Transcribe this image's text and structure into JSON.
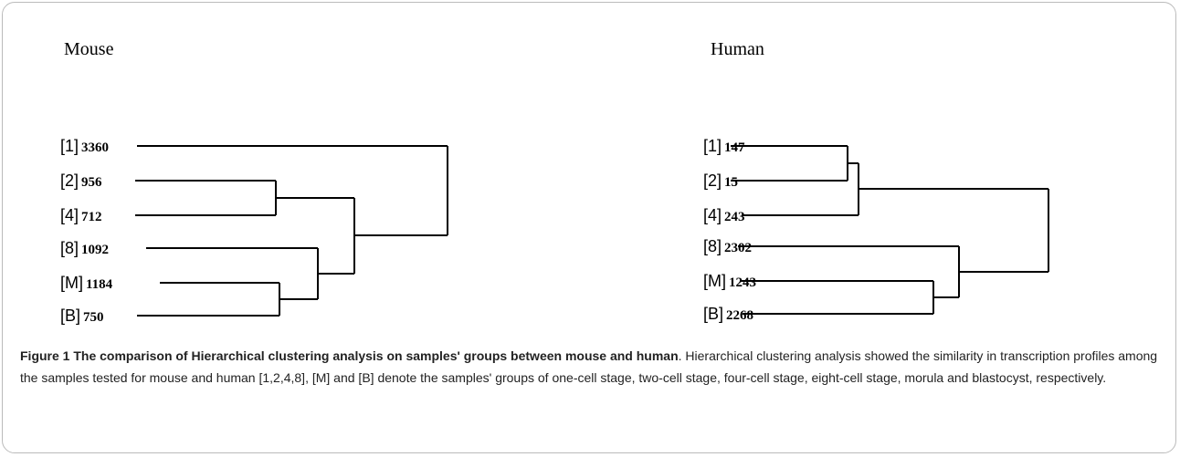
{
  "panels": [
    {
      "title": "Mouse",
      "leaves": [
        {
          "group": "[1]",
          "count": 3360
        },
        {
          "group": "[2]",
          "count": 956
        },
        {
          "group": "[4]",
          "count": 712
        },
        {
          "group": "[8]",
          "count": 1092
        },
        {
          "group": "[M]",
          "count": 1184
        },
        {
          "group": "[B]",
          "count": 750
        }
      ]
    },
    {
      "title": "Human",
      "leaves": [
        {
          "group": "[1]",
          "count": 147
        },
        {
          "group": "[2]",
          "count": 15
        },
        {
          "group": "[4]",
          "count": 243
        },
        {
          "group": "[8]",
          "count": 2302
        },
        {
          "group": "[M]",
          "count": 1243
        },
        {
          "group": "[B]",
          "count": 2268
        }
      ]
    }
  ],
  "caption": {
    "label": "Figure 1",
    "title": "The comparison of Hierarchical clustering analysis on samples' groups between mouse and human",
    "text": ". Hierarchical clustering analysis showed the similarity in transcription profiles among the samples tested for mouse and human [1,2,4,8], [M] and [B] denote the samples' groups of one-cell stage, two-cell stage, four-cell stage, eight-cell stage, morula and blastocyst, respectively."
  }
}
